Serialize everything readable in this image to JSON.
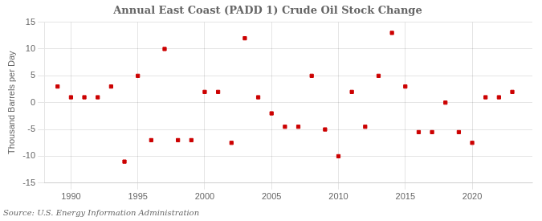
{
  "chart_data": {
    "type": "scatter",
    "title": "Annual East Coast (PADD 1) Crude Oil Stock Change",
    "ylabel": "Thousand Barrels per Day",
    "annotations": [
      "Source: U.S. Energy Information Administration"
    ],
    "x": [
      1989,
      1990,
      1991,
      1992,
      1993,
      1994,
      1995,
      1996,
      1997,
      1998,
      1999,
      2000,
      2001,
      2002,
      2003,
      2004,
      2005,
      2006,
      2007,
      2008,
      2009,
      2010,
      2011,
      2012,
      2013,
      2014,
      2015,
      2016,
      2017,
      2018,
      2019,
      2020,
      2021,
      2022,
      2023
    ],
    "values": [
      3.0,
      1.0,
      1.0,
      1.0,
      3.0,
      -11.0,
      5.0,
      -7.0,
      10.0,
      -7.0,
      -7.0,
      2.0,
      2.0,
      -7.5,
      12.0,
      1.0,
      -2.0,
      -4.5,
      -4.5,
      5.0,
      -5.0,
      -10.0,
      2.0,
      -4.5,
      5.0,
      13.0,
      3.0,
      -5.5,
      -5.5,
      0.0,
      -5.5,
      -7.5,
      1.0,
      1.0,
      2.0
    ],
    "color": "#CC0000",
    "marker": "square",
    "xlim": [
      1988.0,
      2024.5
    ],
    "xticks": [
      1990,
      1995,
      2000,
      2005,
      2010,
      2015,
      2020
    ],
    "ylim": [
      -15,
      15
    ],
    "yticks": [
      -15,
      -10,
      -5,
      0,
      5,
      10,
      15
    ],
    "grid": true
  }
}
